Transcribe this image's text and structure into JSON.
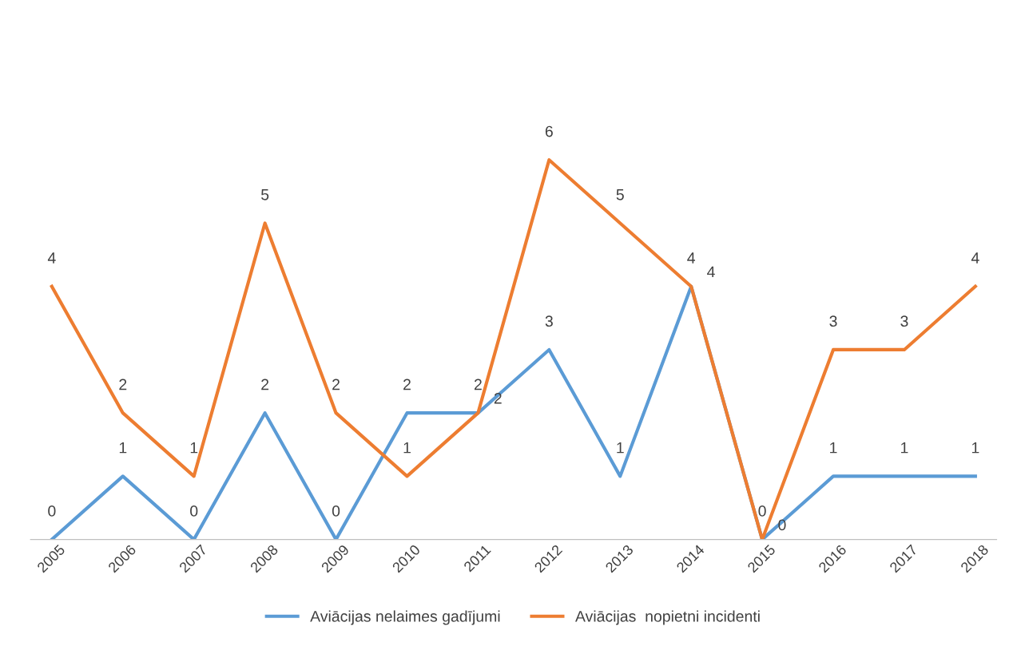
{
  "chart_data": {
    "type": "line",
    "categories": [
      "2005",
      "2006",
      "2007",
      "2008",
      "2009",
      "2010",
      "2011",
      "2012",
      "2013",
      "2014",
      "2015",
      "2016",
      "2017",
      "2018"
    ],
    "series": [
      {
        "name": "Aviācijas nelaimes gadījumi",
        "color": "#5b9bd5",
        "values": [
          0,
          1,
          0,
          2,
          0,
          2,
          2,
          3,
          1,
          4,
          0,
          1,
          1,
          1
        ]
      },
      {
        "name": "Aviācijas  nopietni incidenti",
        "color": "#ed7d31",
        "values": [
          4,
          2,
          1,
          5,
          2,
          1,
          2,
          6,
          5,
          4,
          0,
          3,
          3,
          4
        ]
      }
    ],
    "data_labels": true,
    "legend": "bottom",
    "grid": false,
    "marker": "none",
    "line_style": "solid"
  }
}
